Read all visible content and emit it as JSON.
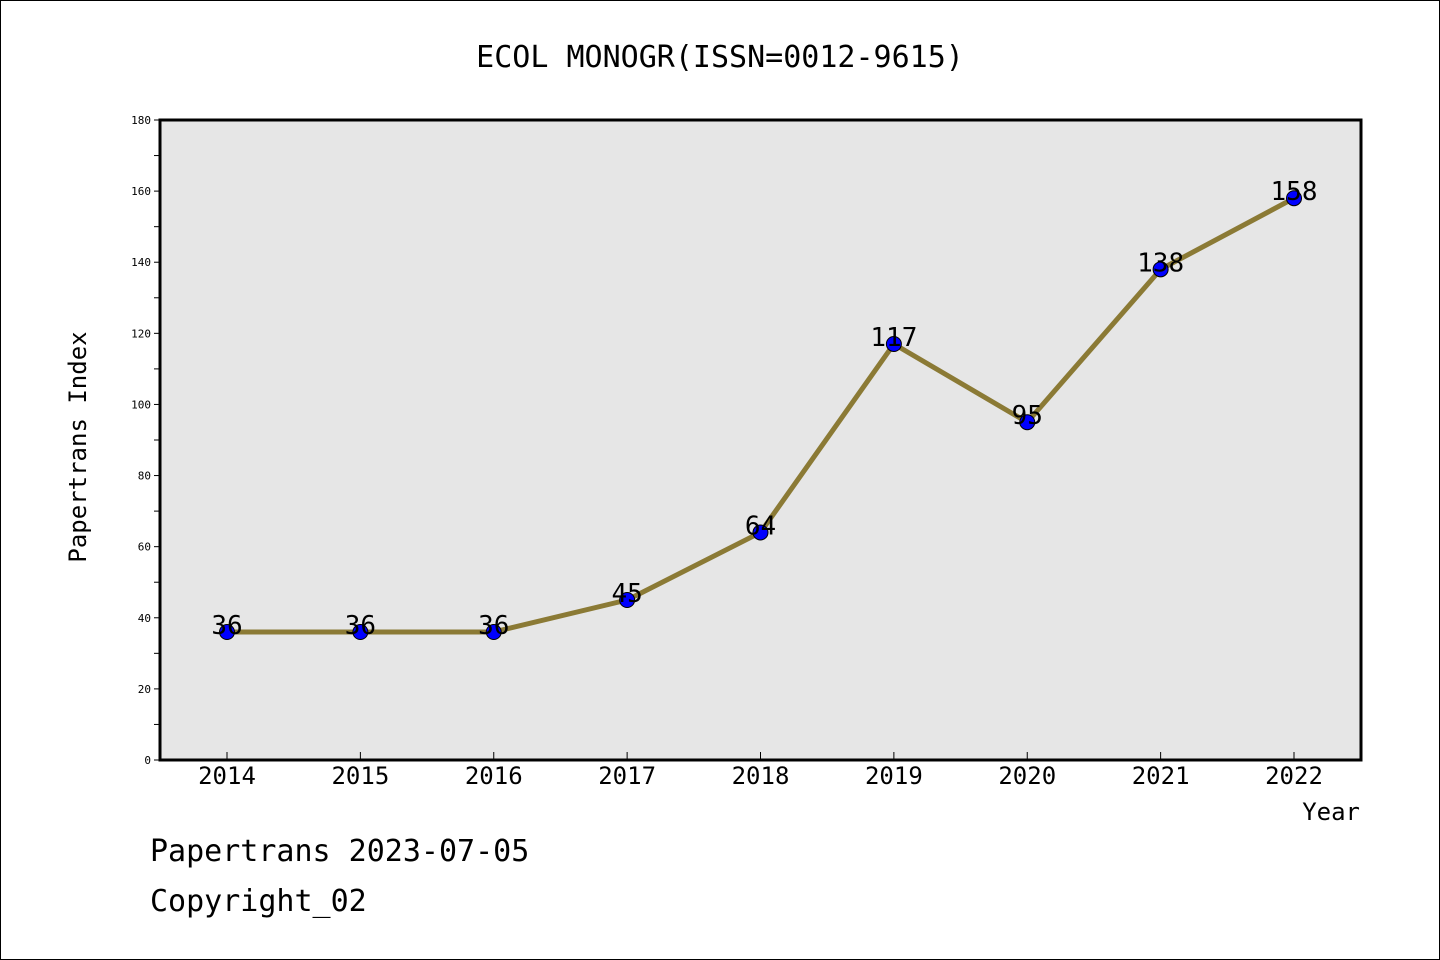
{
  "chart_data": {
    "type": "line",
    "title": "ECOL MONOGR(ISSN=0012-9615)",
    "xlabel": "Year",
    "ylabel": "Papertrans Index",
    "x": [
      "2014",
      "2015",
      "2016",
      "2017",
      "2018",
      "2019",
      "2020",
      "2021",
      "2022"
    ],
    "series": [
      {
        "values": [
          36,
          36,
          36,
          45,
          64,
          117,
          95,
          138,
          158
        ]
      }
    ],
    "data_labels": [
      "36",
      "36",
      "36",
      "45",
      "64",
      "117",
      "95",
      "138",
      "158"
    ],
    "ylim": [
      0,
      180
    ],
    "y_ticks": [
      "0",
      "20",
      "40",
      "60",
      "80",
      "100",
      "120",
      "140",
      "160",
      "180"
    ],
    "grid": false,
    "plot_background": "#e6e6e6",
    "line_color": "#8b7a35",
    "marker_color": "#0000ff"
  },
  "footer": {
    "date_text": "Papertrans 2023-07-05",
    "copyright_text": "Copyright_02"
  }
}
